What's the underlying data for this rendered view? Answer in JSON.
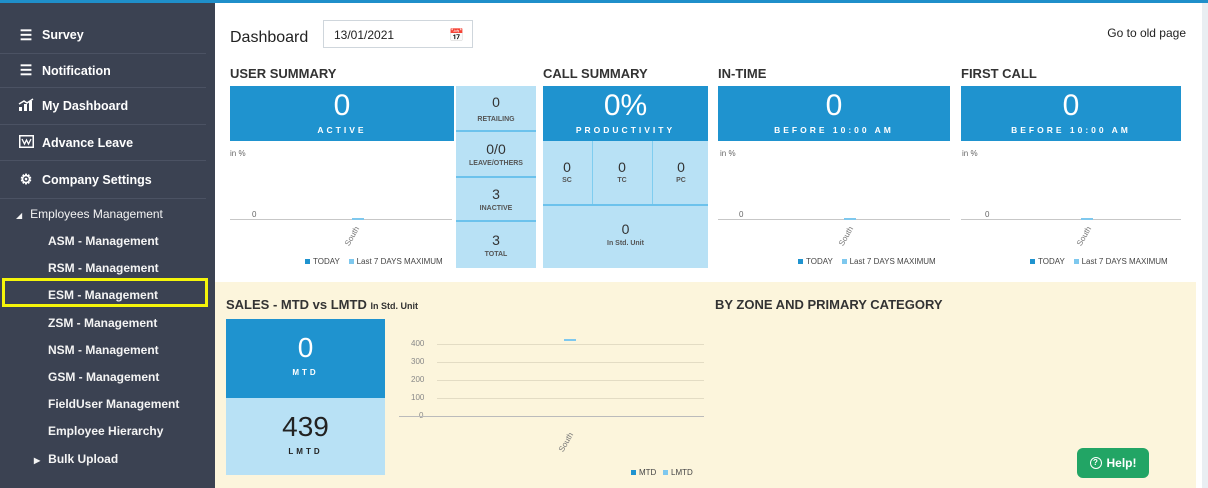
{
  "sidebar": {
    "top_items": [
      {
        "label": "Survey",
        "icon": "list-icon"
      },
      {
        "label": "Notification",
        "icon": "list-icon"
      },
      {
        "label": "My Dashboard",
        "icon": "chart-icon"
      },
      {
        "label": "Advance Leave",
        "icon": "chart-box-icon"
      },
      {
        "label": "Company Settings",
        "icon": "gears-icon"
      }
    ],
    "group": "Employees Management",
    "sub_items": [
      "ASM - Management",
      "RSM - Management",
      "ESM - Management",
      "ZSM - Management",
      "NSM - Management",
      "GSM - Management",
      "FieldUser Management",
      "Employee Hierarchy"
    ],
    "bulk": "Bulk Upload"
  },
  "header": {
    "title": "Dashboard",
    "date": "13/01/2021",
    "old_page": "Go to old page"
  },
  "user_summary": {
    "title": "USER SUMMARY",
    "active_value": "0",
    "active_label": "ACTIVE",
    "in_pct": "in %",
    "zero": "0",
    "category": "South",
    "legend_today": "TODAY",
    "legend_last7": "Last 7 DAYS MAXIMUM",
    "retailing_value": "0",
    "retailing_label": "RETAILING",
    "leave_value": "0/0",
    "leave_label": "LEAVE/OTHERS",
    "inactive_value": "3",
    "inactive_label": "INACTIVE",
    "total_value": "3",
    "total_label": "TOTAL"
  },
  "call_summary": {
    "title": "CALL SUMMARY",
    "productivity_value": "0%",
    "productivity_label": "PRODUCTIVITY",
    "sc_value": "0",
    "sc_label": "SC",
    "tc_value": "0",
    "tc_label": "TC",
    "pc_value": "0",
    "pc_label": "PC",
    "std_value": "0",
    "std_label": "In Std. Unit"
  },
  "in_time": {
    "title": "IN-TIME",
    "value": "0",
    "label": "BEFORE 10:00 AM",
    "in_pct": "in %",
    "zero": "0",
    "category": "South",
    "legend_today": "TODAY",
    "legend_last7": "Last 7 DAYS MAXIMUM"
  },
  "first_call": {
    "title": "FIRST CALL",
    "value": "0",
    "label": "BEFORE 10:00 AM",
    "in_pct": "in %",
    "zero": "0",
    "category": "South",
    "legend_today": "TODAY",
    "legend_last7": "Last 7 DAYS MAXIMUM"
  },
  "sales": {
    "title": "SALES - MTD vs LMTD",
    "unit": "In Std. Unit",
    "mtd_value": "0",
    "mtd_label": "MTD",
    "lmtd_value": "439",
    "lmtd_label": "LMTD",
    "yticks": [
      "400",
      "300",
      "200",
      "100",
      "0"
    ],
    "category": "South",
    "legend_mtd": "MTD",
    "legend_lmtd": "LMTD",
    "zone_title": "BY ZONE AND PRIMARY CATEGORY"
  },
  "help": "Help!",
  "colors": {
    "accent": "#1f93cf",
    "light": "#b8e1f5",
    "sidebar": "#3b4252",
    "highlight": "#f5f50a",
    "help": "#22a565"
  }
}
